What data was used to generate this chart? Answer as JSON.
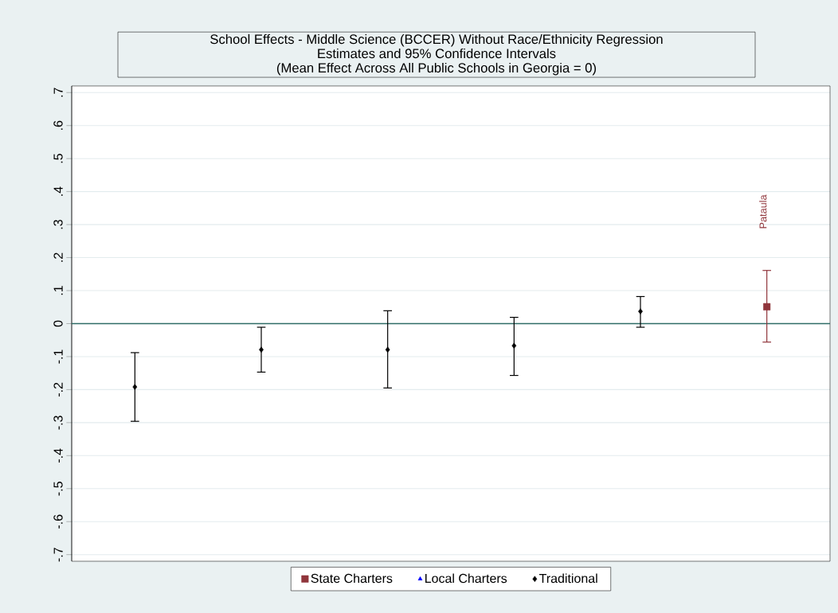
{
  "chart_data": {
    "type": "scatter",
    "title": "School Effects - Middle Science (BCCER) Without Race/Ethnicity Regression",
    "subtitle": "Estimates and 95% Confidence Intervals",
    "annotations": [
      "(Mean Effect Across All Public Schools in Georgia = 0)",
      "Pataula"
    ],
    "categories": [
      null,
      null,
      null,
      null,
      null,
      null
    ],
    "series": [
      {
        "name": "State Charters",
        "color": "#90353b",
        "marker": "square",
        "values": [
          null,
          null,
          null,
          null,
          null,
          0.051
        ],
        "errors": [
          null,
          null,
          null,
          null,
          null,
          [
            -0.056,
            0.161
          ]
        ]
      },
      {
        "name": "Local Charters",
        "color": "#0000ff",
        "marker": "triangle",
        "values": [
          null,
          null,
          null,
          null,
          null,
          null
        ]
      },
      {
        "name": "Traditional",
        "color": "#000000",
        "marker": "diamond",
        "values": [
          -0.192,
          -0.079,
          -0.079,
          -0.067,
          0.037,
          null
        ],
        "errors": [
          [
            -0.296,
            -0.088
          ],
          [
            -0.147,
            -0.011
          ],
          [
            -0.195,
            0.039
          ],
          [
            -0.157,
            0.019
          ],
          [
            -0.011,
            0.082
          ],
          null
        ]
      }
    ],
    "ylim": [
      -0.72,
      0.72
    ],
    "yticks": [
      {
        "value": -0.7,
        "label": "-.7"
      },
      {
        "value": -0.6,
        "label": "-.6"
      },
      {
        "value": -0.5,
        "label": "-.5"
      },
      {
        "value": -0.4,
        "label": "-.4"
      },
      {
        "value": -0.3,
        "label": "-.3"
      },
      {
        "value": -0.2,
        "label": "-.2"
      },
      {
        "value": -0.1,
        "label": "-.1"
      },
      0,
      {
        "value": 0.1,
        "label": ".1"
      },
      {
        "value": 0.2,
        "label": ".2"
      },
      {
        "value": 0.3,
        "label": ".3"
      },
      {
        "value": 0.4,
        "label": ".4"
      },
      {
        "value": 0.5,
        "label": ".5"
      },
      {
        "value": 0.6,
        "label": ".6"
      },
      {
        "value": 0.7,
        "label": ".7"
      }
    ],
    "ref_lines": [
      {
        "axis": "y",
        "value": 0,
        "color": "#2e6b66"
      }
    ],
    "grid": "y",
    "legend": "bottom",
    "tick_labels": "y"
  }
}
